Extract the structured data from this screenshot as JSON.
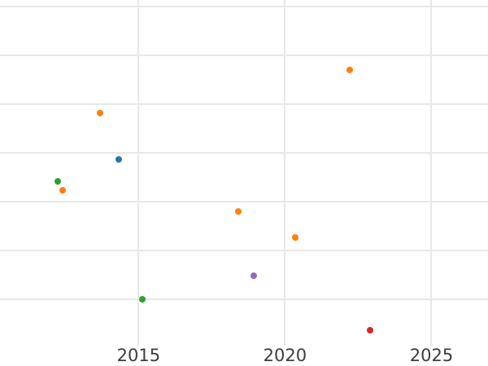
{
  "page": {
    "background": "#ffffff"
  },
  "chart_data": {
    "type": "scatter",
    "title": "",
    "xlabel": "",
    "ylabel": "",
    "grid": true,
    "legend": false,
    "y_tick_labels_visible": false,
    "xlim": [
      2010.27,
      2026.93
    ],
    "ylim": [
      -0.95,
      6.13
    ],
    "x_ticks": [
      {
        "value": 2015,
        "label": "2015"
      },
      {
        "value": 2020,
        "label": "2020"
      },
      {
        "value": 2025,
        "label": "2025"
      }
    ],
    "y_gridlines": [
      0,
      1,
      2,
      3,
      4,
      5,
      6
    ],
    "colors": {
      "grid": "#e8e8e8",
      "tick_label": "#3d3d3d",
      "background": "#ffffff"
    },
    "series": [
      {
        "name": "blue",
        "color": "#1f77b4",
        "points": [
          {
            "x": 2014.33,
            "y": 2.87
          }
        ]
      },
      {
        "name": "orange",
        "color": "#ff7f0e",
        "points": [
          {
            "x": 2012.41,
            "y": 2.23
          },
          {
            "x": 2013.69,
            "y": 3.82
          },
          {
            "x": 2018.41,
            "y": 1.8
          },
          {
            "x": 2020.35,
            "y": 1.27
          },
          {
            "x": 2022.21,
            "y": 4.7
          }
        ]
      },
      {
        "name": "green",
        "color": "#2ca02c",
        "points": [
          {
            "x": 2012.24,
            "y": 2.42
          },
          {
            "x": 2015.13,
            "y": 0.0
          }
        ]
      },
      {
        "name": "red",
        "color": "#d62728",
        "points": [
          {
            "x": 2022.9,
            "y": -0.63
          }
        ]
      },
      {
        "name": "purple",
        "color": "#9467bd",
        "points": [
          {
            "x": 2018.93,
            "y": 0.48
          }
        ]
      }
    ]
  }
}
